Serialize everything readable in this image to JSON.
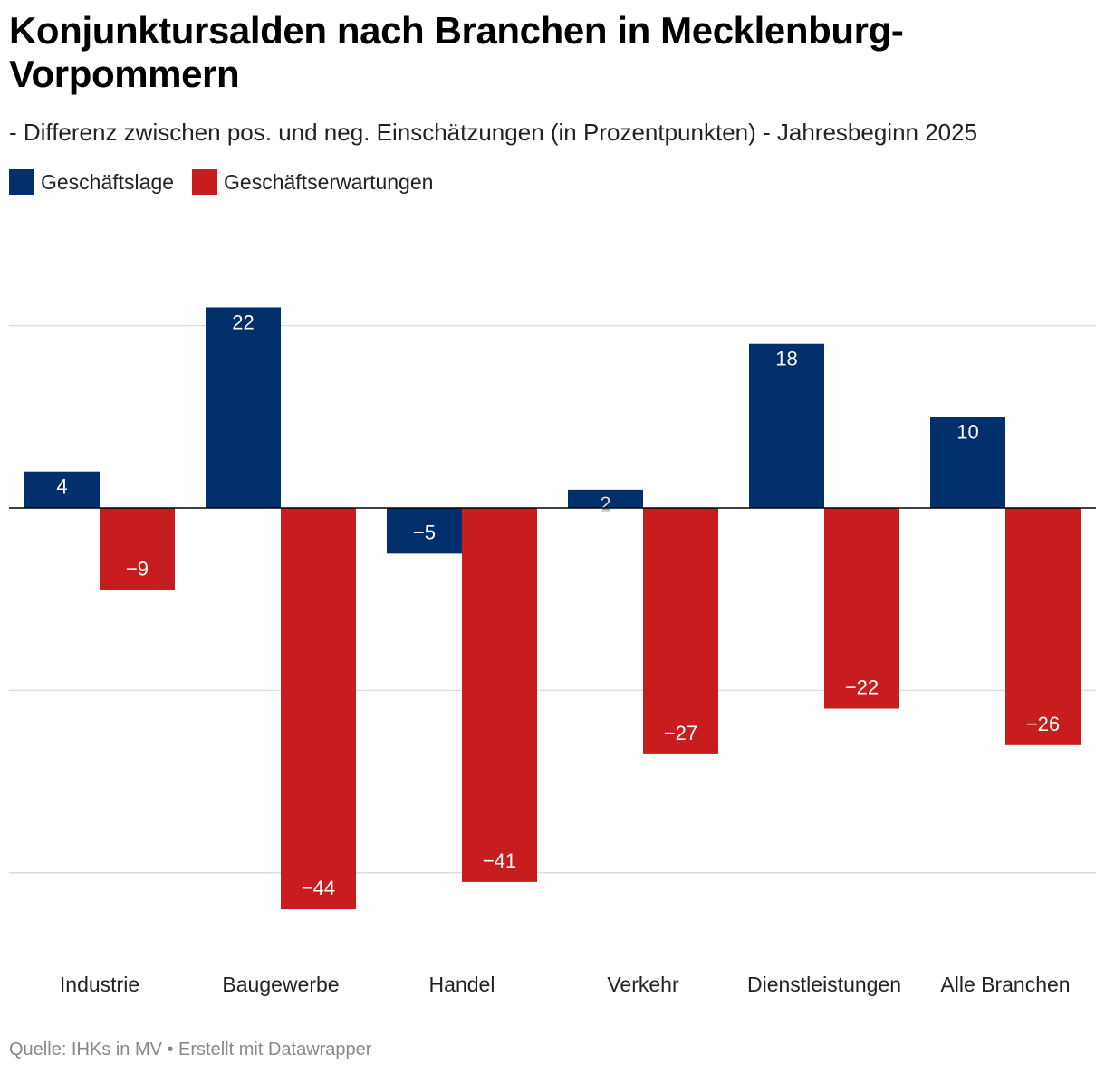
{
  "title": "Konjunktursalden nach Branchen in Mecklenburg-Vorpommern",
  "subtitle": "- Differenz zwischen pos. und neg. Einschätzungen (in Prozentpunkten) - Jahresbeginn 2025",
  "source": "Quelle: IHKs in MV • Erstellt mit Datawrapper",
  "colors": {
    "lage": "#002f6b",
    "erwartungen": "#c81d1f",
    "grid": "#dedede",
    "baseline": "#000000"
  },
  "chart_data": {
    "type": "bar",
    "categories": [
      "Industrie",
      "Baugewerbe",
      "Handel",
      "Verkehr",
      "Dienstleistungen",
      "Alle Branchen"
    ],
    "series": [
      {
        "name": "Geschäftslage",
        "values": [
          4,
          22,
          -5,
          2,
          18,
          10
        ]
      },
      {
        "name": "Geschäftserwartungen",
        "values": [
          -9,
          -44,
          -41,
          -27,
          -22,
          -26
        ]
      }
    ],
    "ylim": [
      -44,
      22
    ],
    "gridlines": [
      20,
      0,
      -20,
      -40
    ],
    "grid": true,
    "legend_position": "top-left"
  }
}
